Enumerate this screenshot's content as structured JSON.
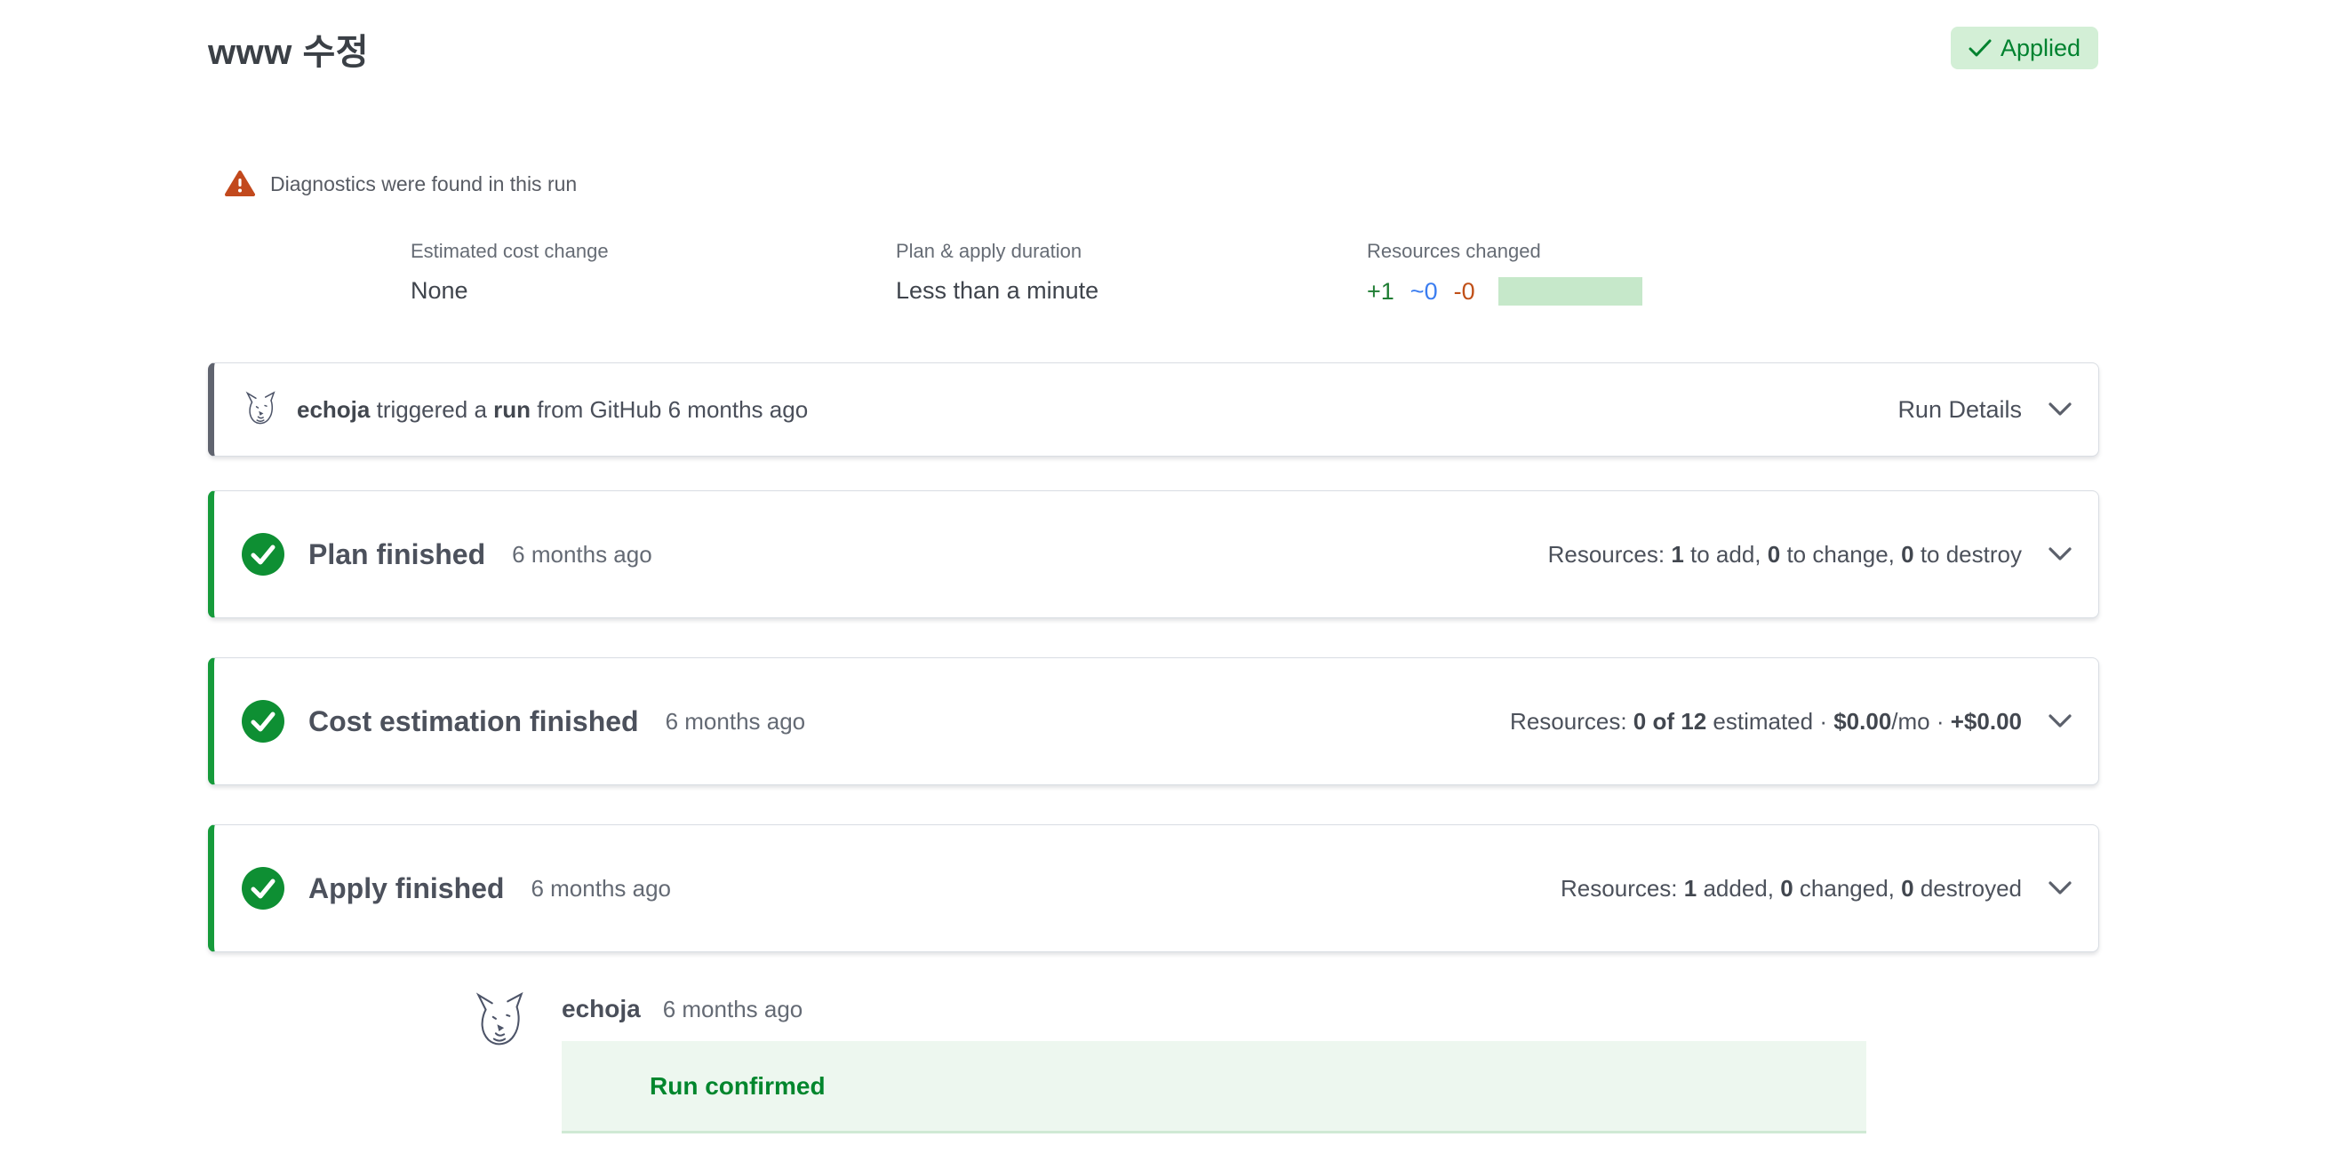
{
  "page": {
    "title": "www 수정",
    "status_badge": "Applied"
  },
  "colors": {
    "success_green": "#169b3b",
    "badge_bg": "#d3efd6",
    "badge_text": "#00822f",
    "warning_orange": "#c2491d",
    "add_green": "#1f7d33",
    "change_blue": "#3b7df0",
    "destroy_orange": "#c05018",
    "bar_green": "#c6e8ca",
    "neutral_border": "#60646f",
    "confirm_bg": "#edf7ef",
    "confirm_text": "#00862d"
  },
  "diagnostics": {
    "message": "Diagnostics were found in this run"
  },
  "meta": {
    "cost": {
      "label": "Estimated cost change",
      "value": "None"
    },
    "duration": {
      "label": "Plan & apply duration",
      "value": "Less than a minute"
    },
    "resources": {
      "label": "Resources changed",
      "add": "+1",
      "change": "~0",
      "destroy": "-0"
    }
  },
  "trigger_card": {
    "segments": [
      {
        "t": "echoja",
        "b": true
      },
      {
        "t": " triggered a "
      },
      {
        "t": "run",
        "b": true
      },
      {
        "t": " from GitHub 6 months ago"
      }
    ],
    "details_label": "Run Details"
  },
  "stages": [
    {
      "title": "Plan finished",
      "time": "6 months ago",
      "summary": [
        {
          "t": "Resources: "
        },
        {
          "t": "1",
          "b": true
        },
        {
          "t": " to add, "
        },
        {
          "t": "0",
          "b": true
        },
        {
          "t": " to change, "
        },
        {
          "t": "0",
          "b": true
        },
        {
          "t": " to destroy"
        }
      ]
    },
    {
      "title": "Cost estimation finished",
      "time": "6 months ago",
      "summary": [
        {
          "t": "Resources: "
        },
        {
          "t": "0 of 12",
          "b": true
        },
        {
          "t": " estimated · "
        },
        {
          "t": "$0.00",
          "b": true
        },
        {
          "t": "/mo · "
        },
        {
          "t": "+$0.00",
          "b": true
        }
      ]
    },
    {
      "title": "Apply finished",
      "time": "6 months ago",
      "summary": [
        {
          "t": "Resources: "
        },
        {
          "t": "1",
          "b": true
        },
        {
          "t": " added, "
        },
        {
          "t": "0",
          "b": true
        },
        {
          "t": " changed, "
        },
        {
          "t": "0",
          "b": true
        },
        {
          "t": " destroyed"
        }
      ]
    }
  ],
  "comment": {
    "user": "echoja",
    "time": "6 months ago",
    "message": "Run confirmed"
  }
}
